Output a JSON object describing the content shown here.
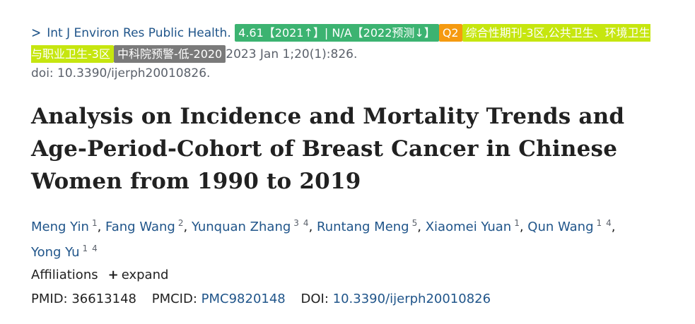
{
  "journal": {
    "name": "Int J Environ Res Public Health.",
    "badges": [
      {
        "text": "4.61【2021↑】| N/A【2022预测↓】",
        "color": "#3cb371"
      },
      {
        "text": "Q2",
        "color": "#f59a10"
      },
      {
        "text": "综合性期刊-3区,公共卫生、环境卫生与职业卫生-3区",
        "color": "#c6e60f"
      },
      {
        "text": "中科院预警-低-2020",
        "color": "#7a7a7a"
      }
    ],
    "date": "2023 Jan 1;20(1):826.",
    "doi": "doi: 10.3390/ijerph20010826."
  },
  "title": "Analysis on Incidence and Mortality Trends and Age-Period-Cohort of Breast Cancer in Chinese Women from 1990 to 2019",
  "authors": [
    {
      "name": "Meng Yin",
      "affs": [
        "1"
      ]
    },
    {
      "name": "Fang Wang",
      "affs": [
        "2"
      ]
    },
    {
      "name": "Yunquan Zhang",
      "affs": [
        "3",
        "4"
      ]
    },
    {
      "name": "Runtang Meng",
      "affs": [
        "5"
      ]
    },
    {
      "name": "Xiaomei Yuan",
      "affs": [
        "1"
      ]
    },
    {
      "name": "Qun Wang",
      "affs": [
        "1",
        "4"
      ]
    },
    {
      "name": "Yong Yu",
      "affs": [
        "1",
        "4"
      ]
    }
  ],
  "affiliations": {
    "label": "Affiliations",
    "expand_label": "expand"
  },
  "identifiers": {
    "pmid_label": "PMID:",
    "pmid": "36613148",
    "pmcid_label": "PMCID:",
    "pmcid": "PMC9820148",
    "doi_label": "DOI:",
    "doi": "10.3390/ijerph20010826"
  }
}
